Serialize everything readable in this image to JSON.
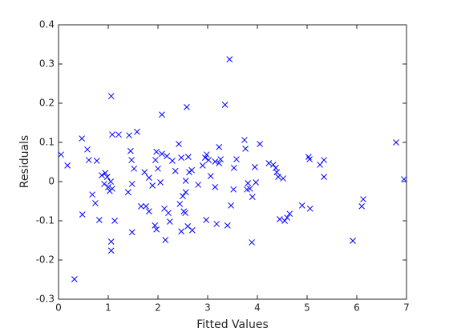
{
  "chart_data": {
    "type": "scatter",
    "xlabel": "Fitted Values",
    "ylabel": "Residuals",
    "xlim": [
      0,
      7
    ],
    "ylim": [
      -0.3,
      0.4
    ],
    "xticks": [
      0,
      1,
      2,
      3,
      4,
      5,
      6,
      7
    ],
    "yticks": [
      -0.3,
      -0.2,
      -0.1,
      0,
      0.1,
      0.2,
      0.3,
      0.4
    ],
    "color": "#0000ff",
    "x": [
      0.05,
      0.18,
      0.32,
      0.47,
      0.48,
      0.58,
      0.61,
      0.68,
      0.74,
      0.77,
      0.82,
      0.87,
      0.92,
      0.94,
      0.98,
      1.0,
      1.03,
      1.05,
      1.06,
      1.06,
      1.06,
      1.08,
      1.08,
      1.13,
      1.21,
      1.4,
      1.42,
      1.45,
      1.47,
      1.48,
      1.48,
      1.52,
      1.58,
      1.66,
      1.73,
      1.76,
      1.82,
      1.82,
      1.89,
      1.94,
      1.95,
      1.97,
      1.97,
      2.0,
      2.05,
      2.08,
      2.08,
      2.13,
      2.15,
      2.18,
      2.21,
      2.24,
      2.29,
      2.35,
      2.42,
      2.44,
      2.47,
      2.47,
      2.5,
      2.52,
      2.55,
      2.56,
      2.56,
      2.58,
      2.6,
      2.61,
      2.63,
      2.68,
      2.69,
      2.81,
      2.9,
      2.95,
      2.97,
      2.98,
      3.02,
      3.06,
      3.15,
      3.15,
      3.18,
      3.23,
      3.23,
      3.26,
      3.35,
      3.4,
      3.44,
      3.47,
      3.52,
      3.53,
      3.58,
      3.74,
      3.76,
      3.79,
      3.81,
      3.85,
      3.9,
      3.89,
      3.95,
      3.97,
      4.05,
      4.23,
      4.32,
      4.37,
      4.39,
      4.42,
      4.45,
      4.52,
      4.55,
      4.6,
      4.65,
      4.9,
      5.03,
      5.05,
      5.06,
      5.26,
      5.34,
      5.34,
      5.92,
      6.1,
      6.13,
      6.79,
      6.95
    ],
    "values": [
      0.069,
      0.041,
      -0.249,
      0.11,
      -0.084,
      0.082,
      0.055,
      -0.033,
      -0.055,
      0.053,
      -0.098,
      0.016,
      -0.006,
      0.022,
      0.012,
      -0.014,
      -0.024,
      0,
      0.218,
      -0.153,
      -0.176,
      0.12,
      -0.018,
      -0.1,
      0.12,
      -0.027,
      0.118,
      0.078,
      0.055,
      -0.006,
      -0.129,
      0.033,
      0.127,
      -0.063,
      0.024,
      -0.063,
      -0.076,
      0.01,
      -0.01,
      -0.112,
      0.055,
      0.076,
      -0.122,
      0.033,
      -0.002,
      0.171,
      0.071,
      -0.069,
      -0.149,
      0.065,
      -0.08,
      -0.102,
      0.053,
      0.027,
      0.096,
      -0.057,
      0.061,
      -0.127,
      -0.037,
      -0.076,
      -0.08,
      0.002,
      -0.027,
      0.19,
      -0.114,
      0.063,
      0.024,
      0.029,
      -0.124,
      -0.008,
      0.041,
      0.061,
      -0.098,
      0.069,
      0.055,
      0.014,
      0.051,
      -0.014,
      -0.108,
      0.047,
      0.088,
      0.057,
      0.196,
      -0.112,
      0.312,
      -0.061,
      -0.02,
      0.035,
      0.057,
      0.106,
      0.084,
      -0.02,
      -0.004,
      -0.018,
      -0.039,
      -0.155,
      0.037,
      -0.002,
      0.096,
      0.047,
      0.043,
      0.035,
      0.024,
      0.012,
      -0.096,
      0.008,
      -0.1,
      -0.092,
      -0.082,
      -0.061,
      0.063,
      0.057,
      -0.069,
      0.043,
      0.055,
      0.012,
      -0.151,
      -0.063,
      -0.045,
      0.1,
      0.006
    ]
  }
}
